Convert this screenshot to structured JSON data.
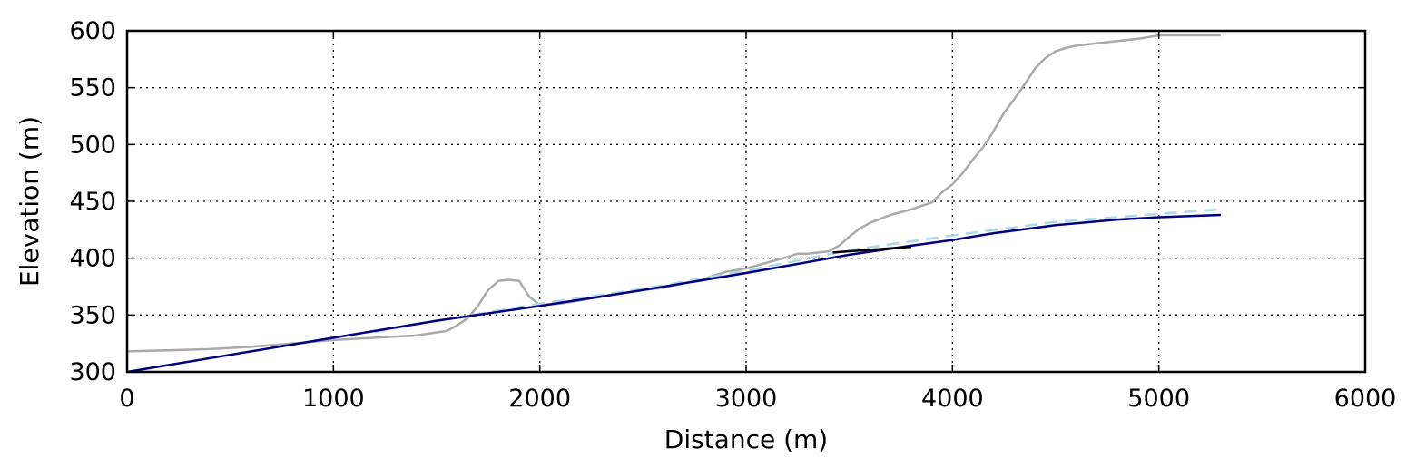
{
  "chart_data": {
    "type": "line",
    "xlabel": "Distance (m)",
    "ylabel": "Elevation (m)",
    "xlim": [
      0,
      6000
    ],
    "ylim": [
      300,
      600
    ],
    "xticks": [
      0,
      1000,
      2000,
      3000,
      4000,
      5000,
      6000
    ],
    "yticks": [
      300,
      350,
      400,
      450,
      500,
      550,
      600
    ],
    "grid": true,
    "series": [
      {
        "color": "#aaaaaa",
        "style": "solid",
        "x": [
          0,
          200,
          400,
          600,
          800,
          1000,
          1200,
          1400,
          1550,
          1600,
          1650,
          1700,
          1750,
          1800,
          1850,
          1900,
          1950,
          2000,
          2100,
          2200,
          2300,
          2400,
          2500,
          2600,
          2700,
          2800,
          2900,
          3000,
          3100,
          3200,
          3250,
          3300,
          3400,
          3450,
          3500,
          3550,
          3600,
          3700,
          3800,
          3900,
          3950,
          4000,
          4050,
          4100,
          4150,
          4200,
          4250,
          4300,
          4350,
          4400,
          4450,
          4500,
          4550,
          4600,
          4700,
          4800,
          4900,
          5000,
          5100,
          5200,
          5300
        ],
        "y": [
          318,
          319,
          320,
          322,
          325,
          328,
          330,
          332,
          336,
          341,
          347,
          358,
          372,
          380,
          381,
          380,
          366,
          359,
          360,
          363,
          366,
          369,
          372,
          374,
          378,
          382,
          388,
          391,
          396,
          401,
          404,
          404,
          406,
          411,
          419,
          426,
          431,
          438,
          443,
          449,
          458,
          465,
          475,
          487,
          498,
          512,
          528,
          540,
          553,
          567,
          576,
          582,
          585,
          587,
          589,
          591,
          593,
          596,
          596,
          596,
          596
        ]
      },
      {
        "color": "#add8e6",
        "style": "dashed",
        "x": [
          1200,
          1500,
          2000,
          2500,
          3000,
          3500,
          4000,
          4500,
          5000,
          5300
        ],
        "y": [
          335,
          345,
          360,
          373,
          389,
          407,
          420,
          432,
          439,
          443
        ]
      },
      {
        "color": "#000080",
        "style": "solid",
        "x": [
          0,
          500,
          1000,
          1500,
          2000,
          2500,
          3000,
          3500,
          3800,
          4000,
          4200,
          4500,
          4800,
          5000,
          5300
        ],
        "y": [
          300,
          315,
          330,
          345,
          358,
          372,
          387,
          403,
          411,
          416,
          422,
          429,
          434,
          436,
          438
        ]
      },
      {
        "color": "#000000",
        "style": "solid",
        "x": [
          3420,
          3800
        ],
        "y": [
          405,
          410
        ]
      }
    ]
  }
}
